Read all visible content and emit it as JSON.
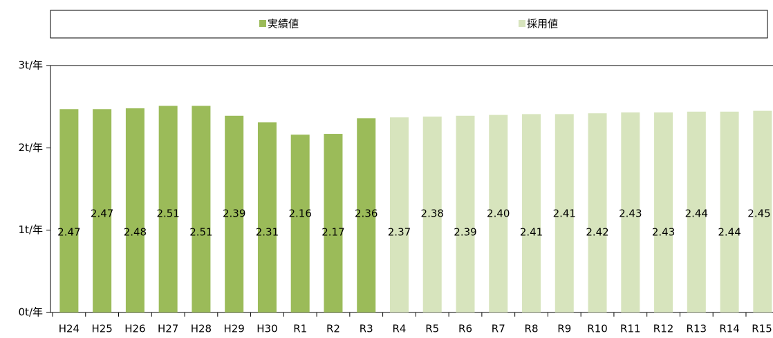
{
  "chart_data": {
    "type": "bar",
    "categories": [
      "H24",
      "H25",
      "H26",
      "H27",
      "H28",
      "H29",
      "H30",
      "R1",
      "R2",
      "R3",
      "R4",
      "R5",
      "R6",
      "R7",
      "R8",
      "R9",
      "R10",
      "R11",
      "R12",
      "R13",
      "R14",
      "R15"
    ],
    "series": [
      {
        "name": "実績値",
        "color": "#9bbb59",
        "values": [
          2.47,
          2.47,
          2.48,
          2.51,
          2.51,
          2.39,
          2.31,
          2.16,
          2.17,
          2.36,
          null,
          null,
          null,
          null,
          null,
          null,
          null,
          null,
          null,
          null,
          null,
          null
        ],
        "value_labels": [
          "2.47",
          "2.47",
          "2.48",
          "2.51",
          "2.51",
          "2.39",
          "2.31",
          "2.16",
          "2.17",
          "2.36",
          null,
          null,
          null,
          null,
          null,
          null,
          null,
          null,
          null,
          null,
          null,
          null
        ]
      },
      {
        "name": "採用値",
        "color": "#d7e4bd",
        "values": [
          null,
          null,
          null,
          null,
          null,
          null,
          null,
          null,
          null,
          null,
          2.37,
          2.38,
          2.39,
          2.4,
          2.41,
          2.41,
          2.42,
          2.43,
          2.43,
          2.44,
          2.44,
          2.45
        ],
        "value_labels": [
          null,
          null,
          null,
          null,
          null,
          null,
          null,
          null,
          null,
          null,
          "2.37",
          "2.38",
          "2.39",
          "2.40",
          "2.41",
          "2.41",
          "2.42",
          "2.43",
          "2.43",
          "2.44",
          "2.44",
          "2.45"
        ]
      }
    ],
    "ylim": [
      0,
      3
    ],
    "yticks": [
      {
        "value": 0,
        "label": "0t/年"
      },
      {
        "value": 1,
        "label": "1t/年"
      },
      {
        "value": 2,
        "label": "2t/年"
      },
      {
        "value": 3,
        "label": "3t/年"
      }
    ],
    "legend": "top"
  }
}
